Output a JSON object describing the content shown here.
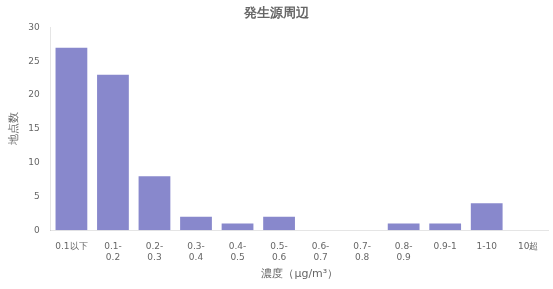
{
  "chart_data": {
    "type": "bar",
    "title": "発生源周辺",
    "categories": [
      "0.1以下",
      "0.1-\n0.2",
      "0.2-\n0.3",
      "0.3-\n0.4",
      "0.4-\n0.5",
      "0.5-\n0.6",
      "0.6-\n0.7",
      "0.7-\n0.8",
      "0.8-\n0.9",
      "0.9-1",
      "1-10",
      "10超"
    ],
    "values": [
      27,
      23,
      8,
      2,
      1,
      2,
      0,
      0,
      1,
      1,
      4,
      0
    ],
    "color": "#8888cc",
    "xlabel": "濃度（μg/m³）",
    "ylabel": "地点数",
    "ylim": [
      0,
      30
    ],
    "yticks": [
      0,
      5,
      10,
      15,
      20,
      25,
      30
    ],
    "grid": false
  }
}
